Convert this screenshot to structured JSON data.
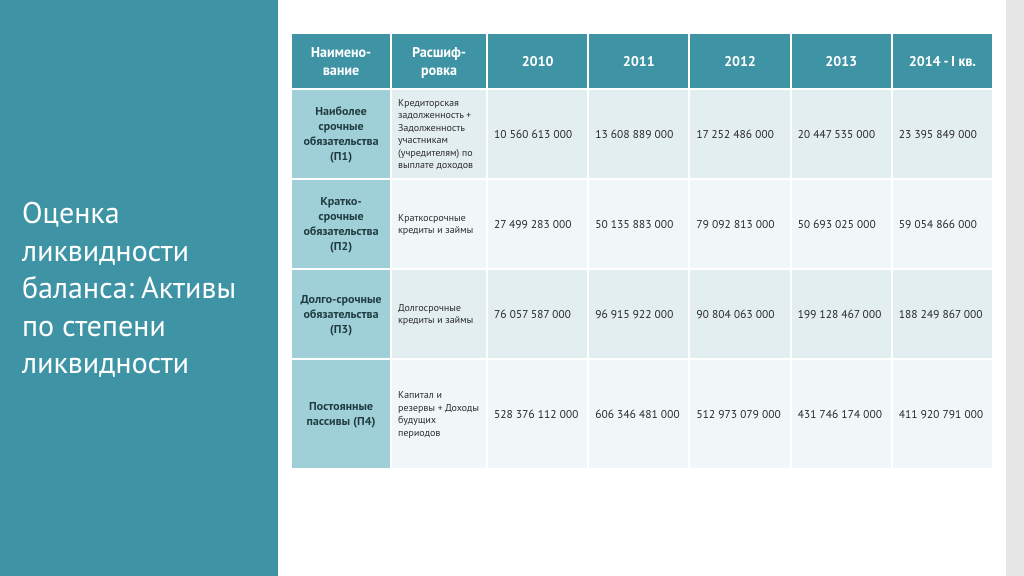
{
  "title": "Оценка ликвидности баланса: Активы по степени ликвидности",
  "colors": {
    "sidebar_bg": "#3e93a5",
    "header_bg": "#3e93a5",
    "rowhead_bg": "#9fd0d8",
    "row_odd_bg": "#e3eef1",
    "row_even_bg": "#f1f7f9",
    "text": "#2b2b2b",
    "title_text": "#ffffff"
  },
  "columns": [
    "Наимено-\nвание",
    "Расшиф-\nровка",
    "2010",
    "2011",
    "2012",
    "2013",
    "2014 - I кв."
  ],
  "rows": [
    {
      "name": "Наиболее срочные обязательства (П1)",
      "desc": "Кредиторская задолженность + Задолженность участникам (учредителям) по выплате доходов",
      "vals": [
        "10 560 613 000",
        "13 608 889 000",
        "17 252 486 000",
        "20 447 535 000",
        "23 395 849 000"
      ]
    },
    {
      "name": "Кратко-срочные обязательства (П2)",
      "desc": "Краткосрочные кредиты и займы",
      "vals": [
        "27 499 283 000",
        "50 135 883 000",
        "79 092 813 000",
        "50 693 025 000",
        "59 054 866 000"
      ]
    },
    {
      "name": "Долго-срочные обязательства (П3)",
      "desc": "Долгосрочные кредиты и займы",
      "vals": [
        "76 057 587 000",
        "96 915 922 000",
        "90 804 063 000",
        "199 128 467 000",
        "188 249 867 000"
      ]
    },
    {
      "name": "Постоянные пассивы (П4)",
      "desc": "Капитал и резервы + Доходы будущих периодов",
      "vals": [
        "528 376 112 000",
        "606 346 481 000",
        "512 973 079 000",
        "431 746 174 000",
        "411 920 791 000"
      ]
    }
  ]
}
